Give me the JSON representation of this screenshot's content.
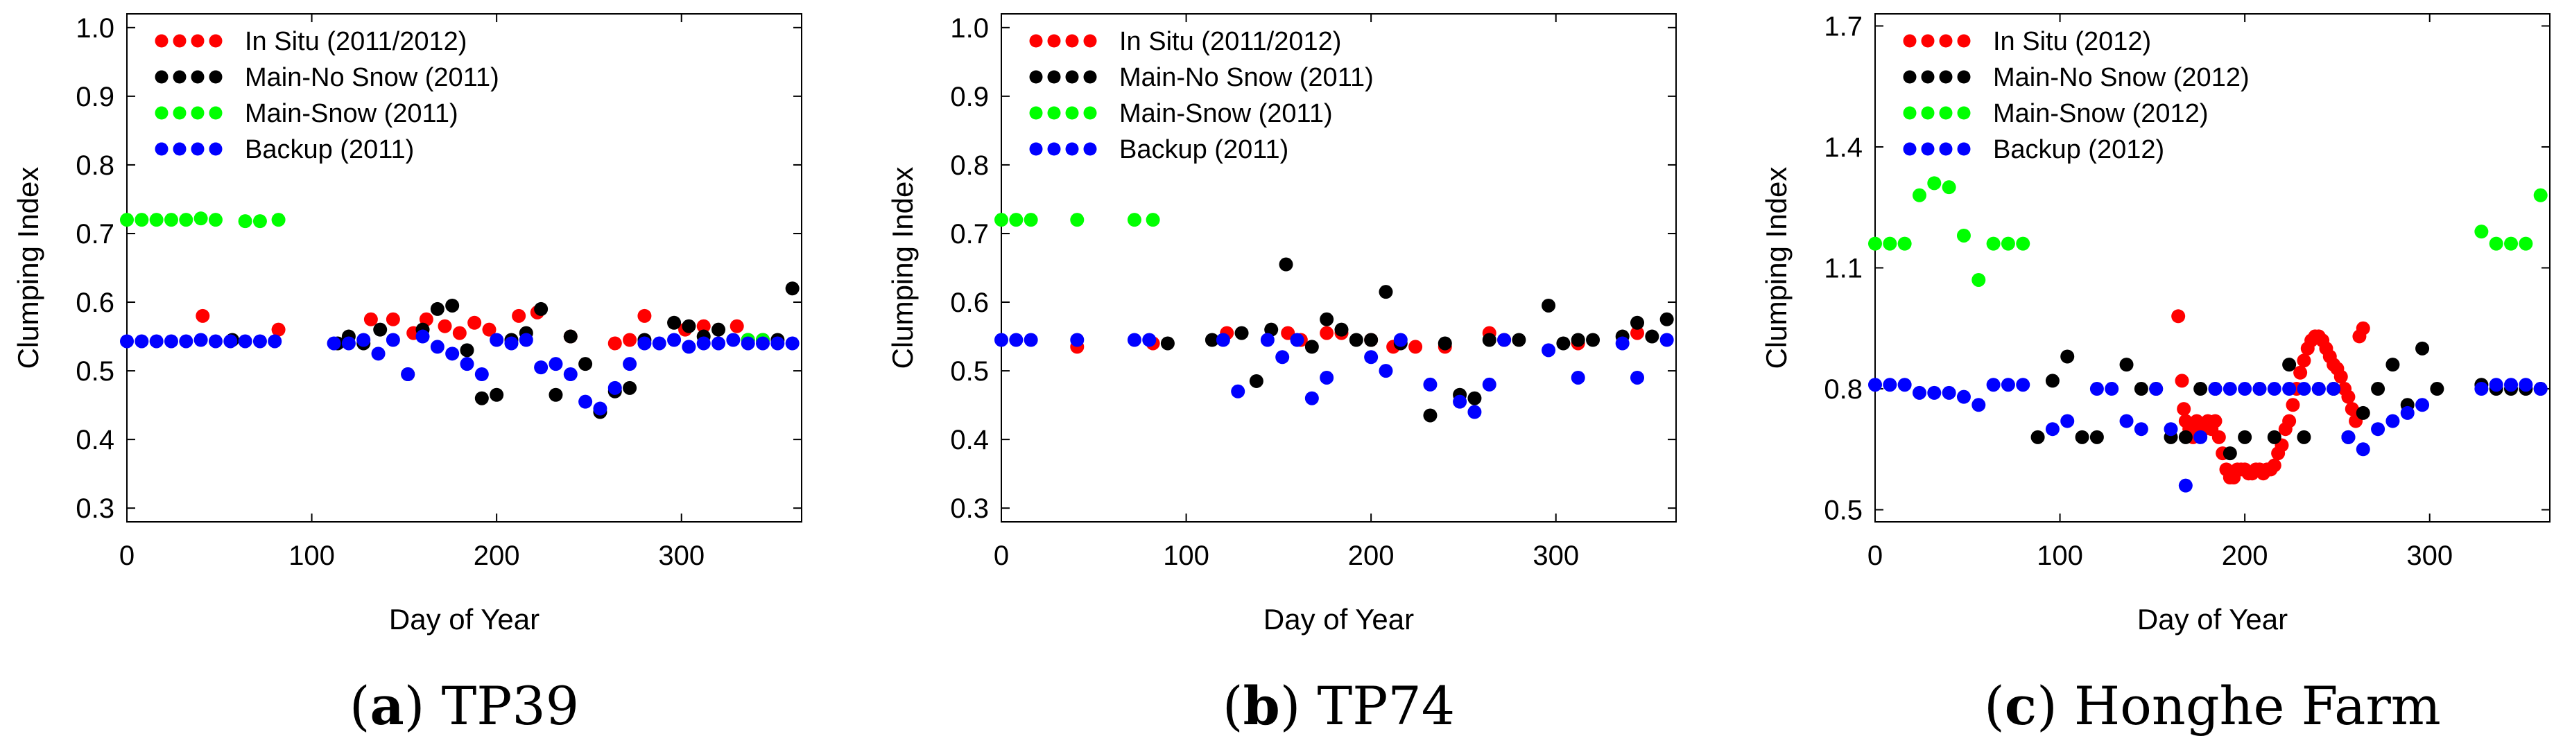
{
  "colors": {
    "in_situ": "#ff0000",
    "main_no_snow": "#000000",
    "main_snow": "#00ff00",
    "backup": "#0000ff"
  },
  "chart_data": [
    {
      "type": "scatter",
      "panel_letter": "a",
      "caption": "TP39",
      "xlabel": "Day of Year",
      "ylabel": "Clumping Index",
      "xlim": [
        0,
        365
      ],
      "ylim": [
        0.28,
        1.02
      ],
      "xticks": [
        0,
        100,
        200,
        300
      ],
      "xtick_labels": [
        "0",
        "100",
        "200",
        "300"
      ],
      "yticks": [
        0.3,
        0.4,
        0.5,
        0.6,
        0.7,
        0.8,
        0.9,
        1.0
      ],
      "ytick_labels": [
        "0.3",
        "0.4",
        "0.5",
        "0.6",
        "0.7",
        "0.8",
        "0.9",
        "1.0"
      ],
      "legend_position": "top-left",
      "series": [
        {
          "name": "In Situ (2011/2012)",
          "color_key": "in_situ",
          "x": [
            41,
            82,
            132,
            144,
            155,
            162,
            172,
            180,
            188,
            196,
            212,
            222,
            240,
            264,
            272,
            280,
            302,
            312,
            330
          ],
          "y": [
            0.58,
            0.56,
            0.575,
            0.575,
            0.555,
            0.575,
            0.565,
            0.555,
            0.57,
            0.56,
            0.58,
            0.585,
            0.55,
            0.54,
            0.545,
            0.58,
            0.56,
            0.565,
            0.565
          ]
        },
        {
          "name": "Main-No Snow (2011)",
          "color_key": "main_no_snow",
          "x": [
            57,
            114,
            120,
            128,
            137,
            152,
            160,
            168,
            176,
            184,
            192,
            200,
            208,
            216,
            224,
            232,
            240,
            248,
            256,
            264,
            272,
            280,
            296,
            304,
            312,
            320,
            336,
            344,
            352,
            360
          ],
          "y": [
            0.545,
            0.54,
            0.55,
            0.54,
            0.56,
            0.495,
            0.56,
            0.59,
            0.595,
            0.53,
            0.46,
            0.465,
            0.545,
            0.555,
            0.59,
            0.465,
            0.55,
            0.51,
            0.44,
            0.47,
            0.475,
            0.545,
            0.57,
            0.565,
            0.55,
            0.56,
            0.545,
            0.545,
            0.545,
            0.62
          ]
        },
        {
          "name": "Main-Snow (2011)",
          "color_key": "main_snow",
          "x": [
            0,
            8,
            16,
            24,
            32,
            40,
            48,
            64,
            72,
            82,
            336,
            344
          ],
          "y": [
            0.72,
            0.72,
            0.72,
            0.72,
            0.72,
            0.722,
            0.72,
            0.718,
            0.718,
            0.72,
            0.545,
            0.545
          ]
        },
        {
          "name": "Backup (2011)",
          "color_key": "backup",
          "x": [
            0,
            8,
            16,
            24,
            32,
            40,
            48,
            56,
            64,
            72,
            80,
            112,
            120,
            128,
            136,
            144,
            152,
            160,
            168,
            176,
            184,
            192,
            200,
            208,
            216,
            224,
            232,
            240,
            248,
            256,
            264,
            272,
            280,
            288,
            296,
            304,
            312,
            320,
            328,
            336,
            344,
            352,
            360
          ],
          "y": [
            0.543,
            0.543,
            0.543,
            0.543,
            0.543,
            0.545,
            0.543,
            0.543,
            0.543,
            0.543,
            0.543,
            0.54,
            0.54,
            0.545,
            0.525,
            0.545,
            0.495,
            0.55,
            0.535,
            0.525,
            0.51,
            0.495,
            0.545,
            0.54,
            0.545,
            0.505,
            0.51,
            0.495,
            0.455,
            0.445,
            0.475,
            0.51,
            0.54,
            0.54,
            0.545,
            0.535,
            0.54,
            0.54,
            0.545,
            0.54,
            0.54,
            0.54,
            0.54
          ]
        }
      ]
    },
    {
      "type": "scatter",
      "panel_letter": "b",
      "caption": "TP74",
      "xlabel": "Day of Year",
      "ylabel": "Clumping Index",
      "xlim": [
        0,
        365
      ],
      "ylim": [
        0.28,
        1.02
      ],
      "xticks": [
        0,
        100,
        200,
        300
      ],
      "xtick_labels": [
        "0",
        "100",
        "200",
        "300"
      ],
      "yticks": [
        0.3,
        0.4,
        0.5,
        0.6,
        0.7,
        0.8,
        0.9,
        1.0
      ],
      "ytick_labels": [
        "0.3",
        "0.4",
        "0.5",
        "0.6",
        "0.7",
        "0.8",
        "0.9",
        "1.0"
      ],
      "legend_position": "top-left",
      "series": [
        {
          "name": "In Situ (2011/2012)",
          "color_key": "in_situ",
          "x": [
            41,
            82,
            122,
            155,
            162,
            176,
            184,
            200,
            212,
            224,
            240,
            264,
            272,
            312,
            344
          ],
          "y": [
            0.535,
            0.54,
            0.555,
            0.555,
            0.545,
            0.555,
            0.555,
            0.545,
            0.535,
            0.535,
            0.535,
            0.555,
            0.545,
            0.54,
            0.555
          ]
        },
        {
          "name": "Main-No Snow (2011)",
          "color_key": "main_no_snow",
          "x": [
            90,
            114,
            130,
            138,
            146,
            154,
            168,
            176,
            184,
            192,
            200,
            208,
            216,
            232,
            240,
            248,
            256,
            264,
            280,
            296,
            304,
            312,
            320,
            336,
            344,
            352,
            360
          ],
          "y": [
            0.54,
            0.545,
            0.555,
            0.485,
            0.56,
            0.655,
            0.535,
            0.575,
            0.56,
            0.545,
            0.545,
            0.615,
            0.54,
            0.435,
            0.54,
            0.465,
            0.46,
            0.545,
            0.545,
            0.595,
            0.54,
            0.545,
            0.545,
            0.55,
            0.57,
            0.55,
            0.575
          ]
        },
        {
          "name": "Main-Snow (2011)",
          "color_key": "main_snow",
          "x": [
            0,
            8,
            16,
            41,
            72,
            82
          ],
          "y": [
            0.72,
            0.72,
            0.72,
            0.72,
            0.72,
            0.72
          ]
        },
        {
          "name": "Backup (2011)",
          "color_key": "backup",
          "x": [
            0,
            8,
            16,
            41,
            72,
            80,
            120,
            128,
            144,
            152,
            160,
            168,
            176,
            200,
            208,
            216,
            232,
            248,
            256,
            264,
            272,
            296,
            312,
            336,
            344,
            360
          ],
          "y": [
            0.545,
            0.545,
            0.545,
            0.545,
            0.545,
            0.545,
            0.545,
            0.47,
            0.545,
            0.52,
            0.545,
            0.46,
            0.49,
            0.52,
            0.5,
            0.545,
            0.48,
            0.455,
            0.44,
            0.48,
            0.545,
            0.53,
            0.49,
            0.54,
            0.49,
            0.545
          ]
        }
      ]
    },
    {
      "type": "scatter",
      "panel_letter": "c",
      "caption": "Honghe Farm",
      "xlabel": "Day of Year",
      "ylabel": "Clumping Index",
      "xlim": [
        0,
        365
      ],
      "ylim": [
        0.47,
        1.73
      ],
      "xticks": [
        0,
        100,
        200,
        300
      ],
      "xtick_labels": [
        "0",
        "100",
        "200",
        "300"
      ],
      "yticks": [
        0.5,
        0.8,
        1.1,
        1.4,
        1.7
      ],
      "ytick_labels": [
        "0.5",
        "0.8",
        "1.1",
        "1.4",
        "1.7"
      ],
      "legend_position": "top-left",
      "series": [
        {
          "name": "In Situ (2012)",
          "color_key": "in_situ",
          "x": [
            164,
            166,
            167,
            168,
            170,
            172,
            174,
            176,
            178,
            180,
            182,
            184,
            186,
            188,
            190,
            192,
            194,
            196,
            198,
            200,
            202,
            204,
            206,
            208,
            210,
            212,
            214,
            216,
            218,
            220,
            222,
            224,
            226,
            228,
            230,
            232,
            234,
            236,
            238,
            240,
            242,
            244,
            246,
            248,
            250,
            252,
            254,
            256,
            258,
            260,
            262,
            264
          ],
          "y": [
            0.98,
            0.82,
            0.75,
            0.72,
            0.7,
            0.68,
            0.72,
            0.7,
            0.7,
            0.72,
            0.7,
            0.72,
            0.68,
            0.64,
            0.6,
            0.58,
            0.58,
            0.6,
            0.6,
            0.6,
            0.59,
            0.59,
            0.6,
            0.6,
            0.59,
            0.6,
            0.6,
            0.61,
            0.64,
            0.66,
            0.7,
            0.72,
            0.76,
            0.8,
            0.84,
            0.87,
            0.9,
            0.92,
            0.93,
            0.93,
            0.92,
            0.9,
            0.88,
            0.86,
            0.85,
            0.83,
            0.8,
            0.78,
            0.75,
            0.72,
            0.93,
            0.95
          ]
        },
        {
          "name": "Main-No Snow (2012)",
          "color_key": "main_no_snow",
          "x": [
            88,
            96,
            104,
            112,
            120,
            136,
            144,
            152,
            160,
            168,
            176,
            184,
            192,
            200,
            208,
            216,
            224,
            232,
            240,
            248,
            256,
            264,
            272,
            280,
            288,
            296,
            304,
            328,
            336,
            344,
            352,
            360
          ],
          "y": [
            0.68,
            0.82,
            0.88,
            0.68,
            0.68,
            0.86,
            0.8,
            0.8,
            0.68,
            0.68,
            0.8,
            0.8,
            0.64,
            0.68,
            0.8,
            0.68,
            0.86,
            0.68,
            0.8,
            0.8,
            0.68,
            0.74,
            0.8,
            0.86,
            0.76,
            0.9,
            0.8,
            0.81,
            0.8,
            0.8,
            0.8,
            0.8
          ]
        },
        {
          "name": "Main-Snow (2012)",
          "color_key": "main_snow",
          "x": [
            0,
            8,
            16,
            24,
            32,
            40,
            48,
            56,
            64,
            72,
            80,
            328,
            336,
            344,
            352,
            360
          ],
          "y": [
            1.16,
            1.16,
            1.16,
            1.28,
            1.31,
            1.3,
            1.18,
            1.07,
            1.16,
            1.16,
            1.16,
            1.19,
            1.16,
            1.16,
            1.16,
            1.28
          ]
        },
        {
          "name": "Backup (2012)",
          "color_key": "backup",
          "x": [
            0,
            8,
            16,
            24,
            32,
            40,
            48,
            56,
            64,
            72,
            80,
            96,
            104,
            120,
            128,
            136,
            144,
            152,
            160,
            168,
            176,
            184,
            192,
            200,
            208,
            216,
            224,
            232,
            240,
            248,
            256,
            264,
            272,
            280,
            288,
            296,
            328,
            336,
            344,
            352,
            360
          ],
          "y": [
            0.81,
            0.81,
            0.81,
            0.79,
            0.79,
            0.79,
            0.78,
            0.76,
            0.81,
            0.81,
            0.81,
            0.7,
            0.72,
            0.8,
            0.8,
            0.72,
            0.7,
            0.8,
            0.7,
            0.56,
            0.68,
            0.8,
            0.8,
            0.8,
            0.8,
            0.8,
            0.8,
            0.8,
            0.8,
            0.8,
            0.68,
            0.65,
            0.7,
            0.72,
            0.74,
            0.76,
            0.8,
            0.81,
            0.81,
            0.81,
            0.8
          ]
        }
      ]
    }
  ]
}
